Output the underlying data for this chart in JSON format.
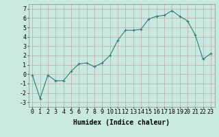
{
  "x": [
    0,
    1,
    2,
    3,
    4,
    5,
    6,
    7,
    8,
    9,
    10,
    11,
    12,
    13,
    14,
    15,
    16,
    17,
    18,
    19,
    20,
    21,
    22,
    23
  ],
  "y": [
    -0.1,
    -2.6,
    -0.1,
    -0.7,
    -0.7,
    0.3,
    1.1,
    1.2,
    0.8,
    1.2,
    2.0,
    3.6,
    4.7,
    4.7,
    4.8,
    5.9,
    6.2,
    6.3,
    6.8,
    6.2,
    5.7,
    4.2,
    1.6,
    2.2
  ],
  "xlabel": "Humidex (Indice chaleur)",
  "xlim": [
    -0.5,
    23.5
  ],
  "ylim": [
    -3.5,
    7.5
  ],
  "yticks": [
    -3,
    -2,
    -1,
    0,
    1,
    2,
    3,
    4,
    5,
    6,
    7
  ],
  "xticks": [
    0,
    1,
    2,
    3,
    4,
    5,
    6,
    7,
    8,
    9,
    10,
    11,
    12,
    13,
    14,
    15,
    16,
    17,
    18,
    19,
    20,
    21,
    22,
    23
  ],
  "line_color": "#2e7d6e",
  "marker": "+",
  "bg_color": "#c8e8e0",
  "grid_color": "#c0a8a8",
  "label_fontsize": 7,
  "tick_fontsize": 6
}
